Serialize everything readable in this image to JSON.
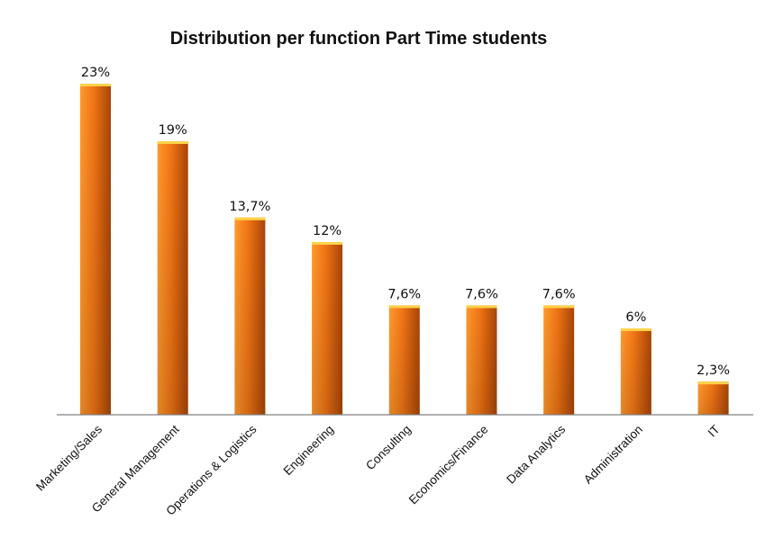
{
  "chart_data": {
    "type": "bar",
    "title": "Distribution per function Part Time students",
    "xlabel": "",
    "ylabel": "",
    "categories": [
      "Marketing/Sales",
      "General Management",
      "Operations & Logistics",
      "Engineering",
      "Consulting",
      "Economics/Finance",
      "Data Analytics",
      "Administration",
      "IT"
    ],
    "values": [
      23,
      19,
      13.7,
      12,
      7.6,
      7.6,
      7.6,
      6,
      2.3
    ],
    "data_labels": [
      "23%",
      "19%",
      "13,7%",
      "12%",
      "7,6%",
      "7,6%",
      "7,6%",
      "6%",
      "2,3%"
    ],
    "ylim": [
      0,
      23
    ],
    "grid": false,
    "legend": "none",
    "colors": {
      "bar_light": "#ff9a2e",
      "bar_mid": "#f07414",
      "bar_dark": "#a84507",
      "bar_top": "#ffd24a",
      "axis": "#808080"
    }
  }
}
